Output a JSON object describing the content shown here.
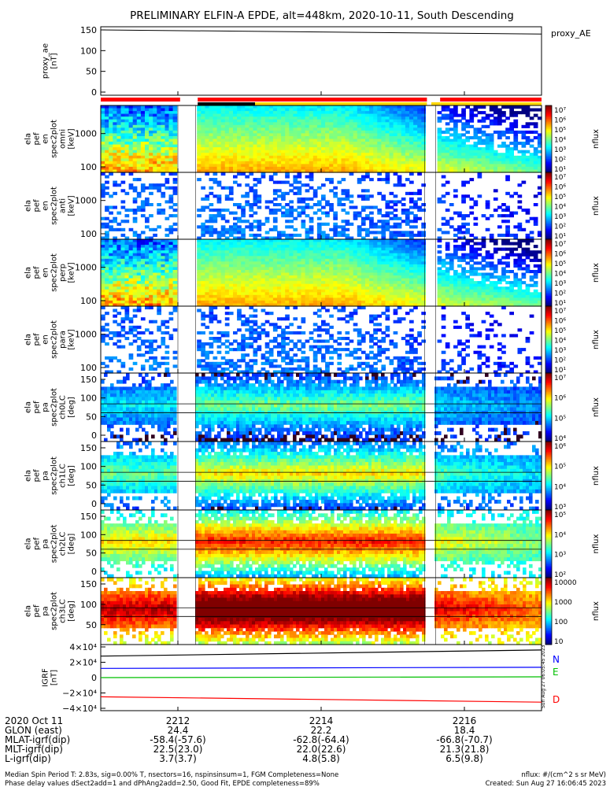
{
  "title": "PRELIMINARY ELFIN-A EPDE, alt=448km, 2020-10-11, South Descending",
  "panels": [
    {
      "label_lines": [
        "proxy_ae",
        "[nT]"
      ],
      "right_label": "proxy_AE",
      "yticks": [
        "150",
        "100",
        "50",
        "0"
      ]
    },
    {
      "label_lines": [
        "ela",
        "pef",
        "en",
        "spec2plot",
        "omni",
        "[keV]"
      ],
      "yticks": [
        "1000",
        "100"
      ],
      "cbar_label": "nflux",
      "cbar_ticks": [
        "10⁷",
        "10⁶",
        "10⁵",
        "10⁴",
        "10³",
        "10²",
        "10¹"
      ]
    },
    {
      "label_lines": [
        "ela",
        "pef",
        "en",
        "spec2plot",
        "anti",
        "[keV]"
      ],
      "yticks": [
        "1000",
        "100"
      ],
      "cbar_label": "nflux",
      "cbar_ticks": [
        "10⁷",
        "10⁶",
        "10⁵",
        "10⁴",
        "10³",
        "10²",
        "10¹"
      ]
    },
    {
      "label_lines": [
        "ela",
        "pef",
        "en",
        "spec2plot",
        "perp",
        "[keV]"
      ],
      "yticks": [
        "1000",
        "100"
      ],
      "cbar_label": "nflux",
      "cbar_ticks": [
        "10⁷",
        "10⁶",
        "10⁵",
        "10⁴",
        "10³",
        "10²",
        "10¹"
      ]
    },
    {
      "label_lines": [
        "ela",
        "pef",
        "en",
        "spec2plot",
        "para",
        "[keV]"
      ],
      "yticks": [
        "1000",
        "100"
      ],
      "cbar_label": "nflux",
      "cbar_ticks": [
        "10⁷",
        "10⁶",
        "10⁵",
        "10⁴",
        "10³",
        "10²",
        "10¹"
      ]
    },
    {
      "label_lines": [
        "ela",
        "pef",
        "pa",
        "spec2plot",
        "ch0LC",
        "[deg]"
      ],
      "yticks": [
        "150",
        "100",
        "50",
        "0"
      ],
      "cbar_label": "nflux",
      "cbar_ticks": [
        "10⁷",
        "10⁶",
        "10⁵",
        "10⁴"
      ]
    },
    {
      "label_lines": [
        "ela",
        "pef",
        "pa",
        "spec2plot",
        "ch1LC",
        "[deg]"
      ],
      "yticks": [
        "150",
        "100",
        "50",
        "0"
      ],
      "cbar_label": "nflux",
      "cbar_ticks": [
        "10⁶",
        "10⁵",
        "10⁴",
        "10³"
      ]
    },
    {
      "label_lines": [
        "ela",
        "pef",
        "pa",
        "spec2plot",
        "ch2LC",
        "[deg]"
      ],
      "yticks": [
        "150",
        "100",
        "50",
        "0"
      ],
      "cbar_label": "nflux",
      "cbar_ticks": [
        "10⁵",
        "10⁴",
        "10³",
        "10²"
      ]
    },
    {
      "label_lines": [
        "ela",
        "pef",
        "pa",
        "spec2plot",
        "ch3LC",
        "[deg]"
      ],
      "yticks": [
        "150",
        "100",
        "50"
      ],
      "cbar_label": "nflux",
      "cbar_ticks": [
        "10000",
        "1000",
        "100",
        "10"
      ]
    },
    {
      "label_lines": [
        "IGRF",
        "[nT]"
      ],
      "yticks": [
        "4×10⁴",
        "2×10⁴",
        "0",
        "−2×10⁴",
        "−4×10⁴"
      ],
      "legend": [
        "N",
        "E",
        "D"
      ]
    }
  ],
  "chart_data": {
    "type": "line",
    "title": "PRELIMINARY ELFIN-A EPDE, alt=448km, 2020-10-11, South Descending",
    "x_ticks": [
      "2212",
      "2214",
      "2216"
    ],
    "proxy_ae": {
      "ylim": [
        0,
        150
      ],
      "x": [
        0,
        1
      ],
      "values": [
        150,
        140
      ]
    },
    "igrf": {
      "ylim": [
        -40000,
        40000
      ],
      "series": [
        {
          "name": "N",
          "color": "#0000ff",
          "values": [
            12000,
            13500
          ]
        },
        {
          "name": "E",
          "color": "#00c000",
          "values": [
            0,
            1000
          ]
        },
        {
          "name": "D",
          "color": "#ff0000",
          "values": [
            -25000,
            -32000
          ]
        },
        {
          "name": "",
          "color": "#000000",
          "values": [
            28000,
            36000
          ]
        }
      ]
    },
    "spectrogram_gaps_x": [
      [
        0.175,
        0.215
      ],
      [
        0.735,
        0.76
      ]
    ]
  },
  "status_bar": {
    "colors": [
      "#ff0000",
      "#000000",
      "#ffd700"
    ]
  },
  "footer": {
    "rows": [
      {
        "label": "2020 Oct 11",
        "vals": [
          "2212",
          "2214",
          "2216"
        ]
      },
      {
        "label": "GLON (east)",
        "vals": [
          "24.4",
          "22.2",
          "18.4"
        ]
      },
      {
        "label": "MLAT-igrf(dip)",
        "vals": [
          "-58.4(-57.6)",
          "-62.8(-64.4)",
          "-66.8(-70.7)"
        ]
      },
      {
        "label": "MLT-igrf(dip)",
        "vals": [
          "22.5(23.0)",
          "22.0(22.6)",
          "21.3(21.8)"
        ]
      },
      {
        "label": "L-igrf(dip)",
        "vals": [
          "3.7(3.7)",
          "4.8(5.8)",
          "6.5(9.8)"
        ]
      }
    ],
    "line1": "Median Spin Period T: 2.83s, sig=0.00% T, nsectors=16, nspinsinsum=1, FGM Completeness=None",
    "line2": "Phase delay values dSect2add=1 and dPhAng2add=2.50, Good Fit, EPDE completeness=89%",
    "right1": "nflux: #/(cm^2 s sr MeV)",
    "right2": "Created: Sun Aug 27 16:06:45 2023",
    "vstamp": "Sun Aug 27 06:05:45 2023"
  }
}
